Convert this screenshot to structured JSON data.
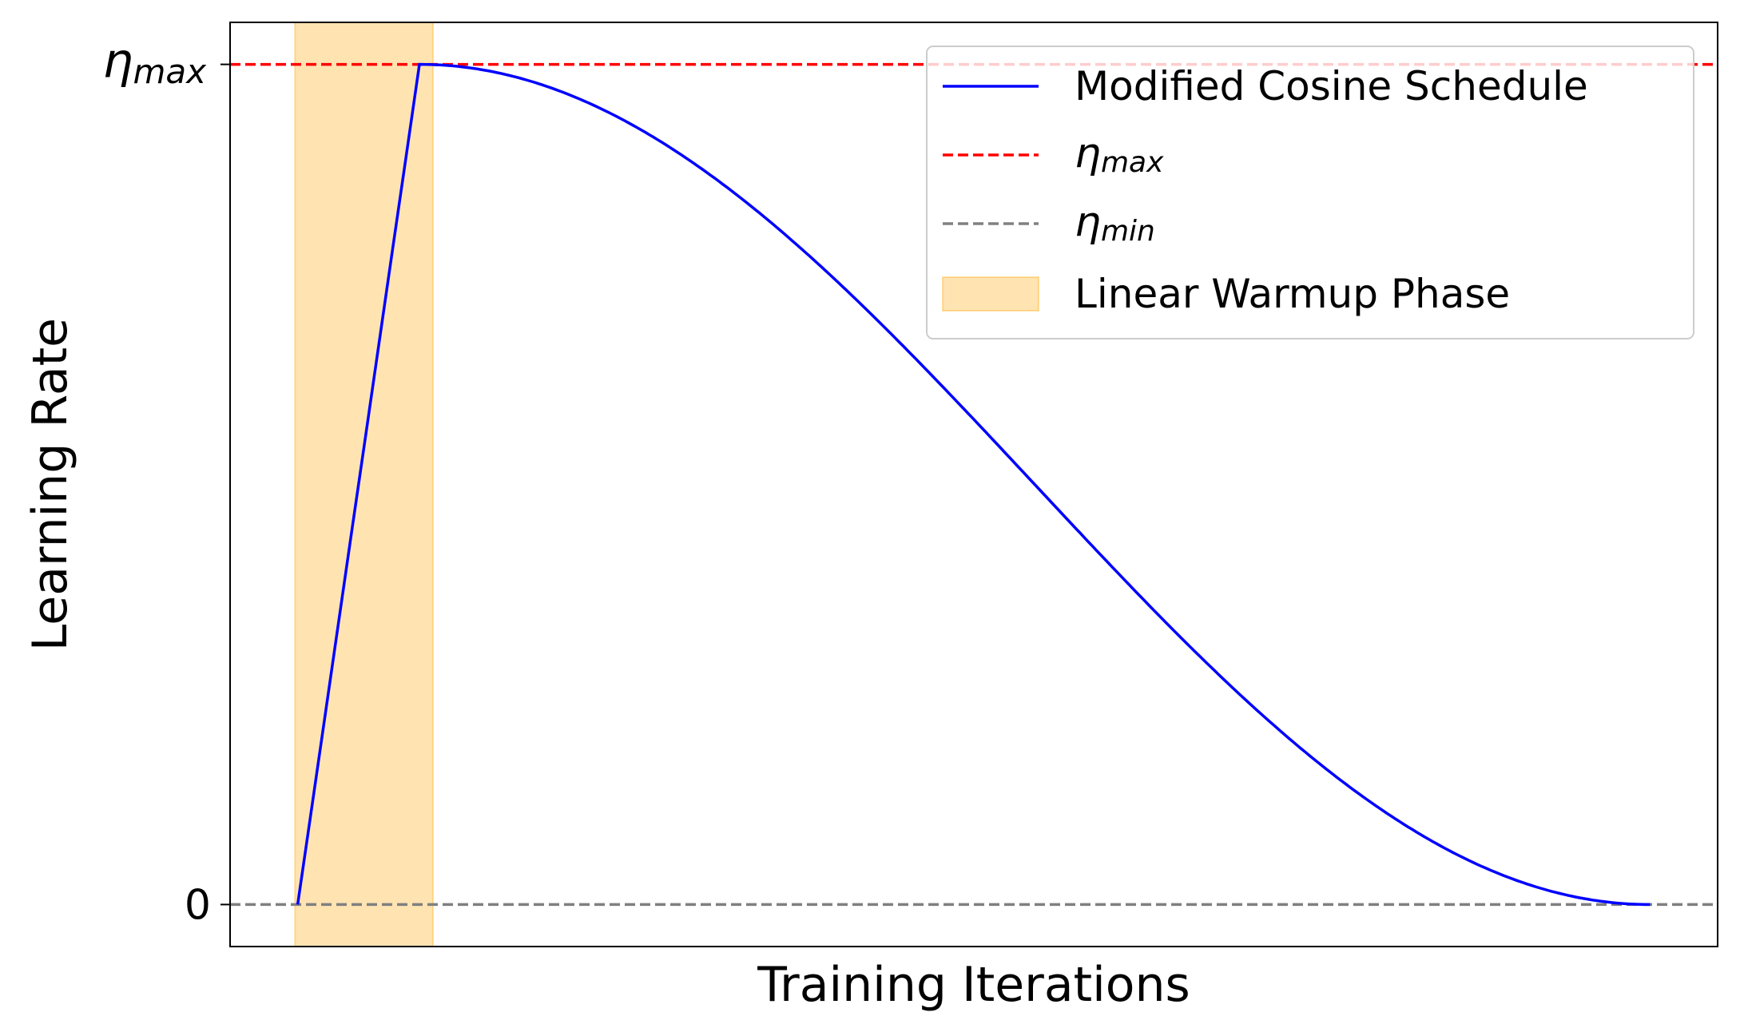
{
  "chart_data": {
    "type": "line",
    "title": "",
    "xlabel": "Training Iterations",
    "ylabel": "Learning Rate",
    "xlim": [
      -5,
      105
    ],
    "ylim": [
      -0.05,
      1.05
    ],
    "x_ticks_shown": false,
    "y_ticks": [
      {
        "value": 0,
        "label": "0"
      },
      {
        "value": 1,
        "label_symbol": "η",
        "label_sub": "max"
      }
    ],
    "warmup_start": 0,
    "warmup_end": 10,
    "decay_end": 100,
    "eta_max": 1,
    "eta_min": 0,
    "series": [
      {
        "name": "Modified Cosine Schedule",
        "color": "#0000ff",
        "style": "solid",
        "description": "linear warmup from 0 to eta_max over iterations 0-9, then cosine decay to eta_min at iteration 100"
      },
      {
        "name_symbol": "η",
        "name_sub": "max",
        "color": "#ff0000",
        "style": "dashed",
        "value": 1
      },
      {
        "name_symbol": "η",
        "name_sub": "min",
        "color": "#808080",
        "style": "dashed",
        "value": 0
      }
    ],
    "shaded_region": {
      "name": "Linear Warmup Phase",
      "x_start": -0.2,
      "x_end": 10,
      "color": "#ffa500",
      "alpha": 0.3
    },
    "legend_position": "top-right",
    "grid": false
  }
}
